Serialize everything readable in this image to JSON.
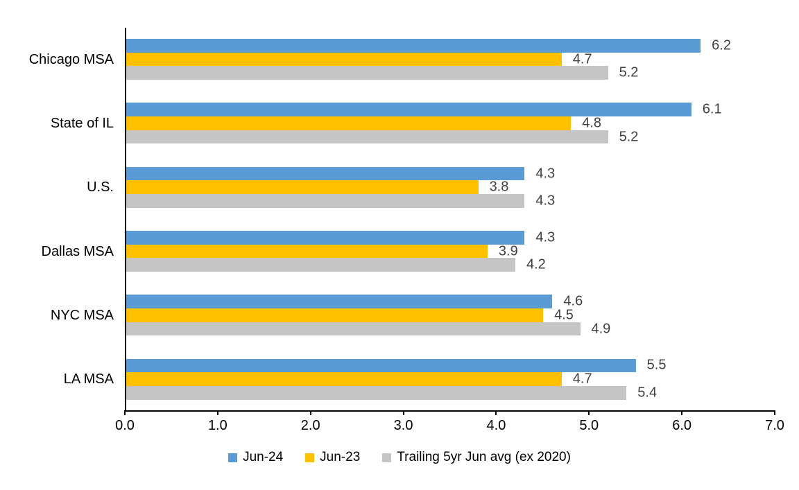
{
  "chart_data": {
    "type": "bar",
    "orientation": "horizontal",
    "title": "",
    "xlabel": "",
    "ylabel": "",
    "categories": [
      "Chicago MSA",
      "State of IL",
      "U.S.",
      "Dallas MSA",
      "NYC MSA",
      "LA MSA"
    ],
    "series": [
      {
        "name": "Jun-24",
        "color": "#5B9BD5",
        "values": [
          6.2,
          6.1,
          4.3,
          4.3,
          4.6,
          5.5
        ]
      },
      {
        "name": "Jun-23",
        "color": "#FFC000",
        "values": [
          4.7,
          4.8,
          3.8,
          3.9,
          4.5,
          4.7
        ]
      },
      {
        "name": "Trailing 5yr Jun avg (ex 2020)",
        "color": "#C5C5C5",
        "values": [
          5.2,
          5.2,
          4.3,
          4.2,
          4.9,
          5.4
        ]
      }
    ],
    "xlim": [
      0,
      7
    ],
    "x_ticks": [
      "0.0",
      "1.0",
      "2.0",
      "3.0",
      "4.0",
      "5.0",
      "6.0",
      "7.0"
    ],
    "grid": false,
    "legend_position": "bottom",
    "data_label_color": "#404040",
    "axis_color": "#000000",
    "text_color": "#000000"
  }
}
